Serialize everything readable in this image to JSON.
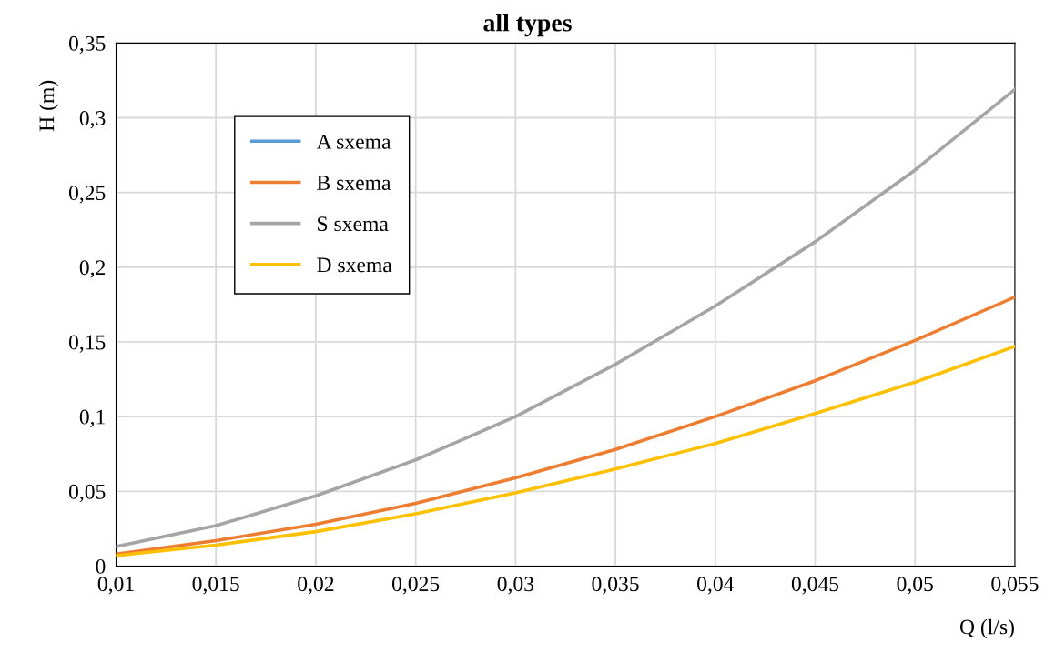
{
  "chart_data": {
    "type": "line",
    "title": "all types",
    "xlabel": "Q (l/s)",
    "ylabel": "H (m)",
    "x": [
      0.01,
      0.015,
      0.02,
      0.025,
      0.03,
      0.035,
      0.04,
      0.045,
      0.05,
      0.055
    ],
    "series": [
      {
        "name": "A sxema",
        "color": "#5b9bd5",
        "values": [
          null,
          null,
          null,
          null,
          null,
          null,
          null,
          null,
          null,
          null
        ]
      },
      {
        "name": "B sxema",
        "color": "#ed7d31",
        "values": [
          0.008,
          0.017,
          0.028,
          0.042,
          0.059,
          0.078,
          0.1,
          0.124,
          0.151,
          0.18
        ]
      },
      {
        "name": "S sxema",
        "color": "#a5a5a5",
        "values": [
          0.013,
          0.027,
          0.047,
          0.071,
          0.1,
          0.135,
          0.174,
          0.217,
          0.265,
          0.319
        ]
      },
      {
        "name": "D sxema",
        "color": "#ffc000",
        "values": [
          0.007,
          0.014,
          0.023,
          0.035,
          0.049,
          0.065,
          0.082,
          0.102,
          0.123,
          0.147
        ]
      }
    ],
    "xlim": [
      0.01,
      0.055
    ],
    "ylim": [
      0,
      0.35
    ],
    "xticks": [
      {
        "value": 0.01,
        "label": "0,01"
      },
      {
        "value": 0.015,
        "label": "0,015"
      },
      {
        "value": 0.02,
        "label": "0,02"
      },
      {
        "value": 0.025,
        "label": "0,025"
      },
      {
        "value": 0.03,
        "label": "0,03"
      },
      {
        "value": 0.035,
        "label": "0,035"
      },
      {
        "value": 0.04,
        "label": "0,04"
      },
      {
        "value": 0.045,
        "label": "0,045"
      },
      {
        "value": 0.05,
        "label": "0,05"
      },
      {
        "value": 0.055,
        "label": "0,055"
      }
    ],
    "yticks": [
      0,
      {
        "value": 0.05,
        "label": "0,05"
      },
      {
        "value": 0.1,
        "label": "0,1"
      },
      {
        "value": 0.15,
        "label": "0,15"
      },
      {
        "value": 0.2,
        "label": "0,2"
      },
      {
        "value": 0.25,
        "label": "0,25"
      },
      {
        "value": 0.3,
        "label": "0,3"
      },
      {
        "value": 0.35,
        "label": "0,35"
      }
    ],
    "grid": true,
    "legend": "top left",
    "marker": "none",
    "line_style": "solid"
  }
}
